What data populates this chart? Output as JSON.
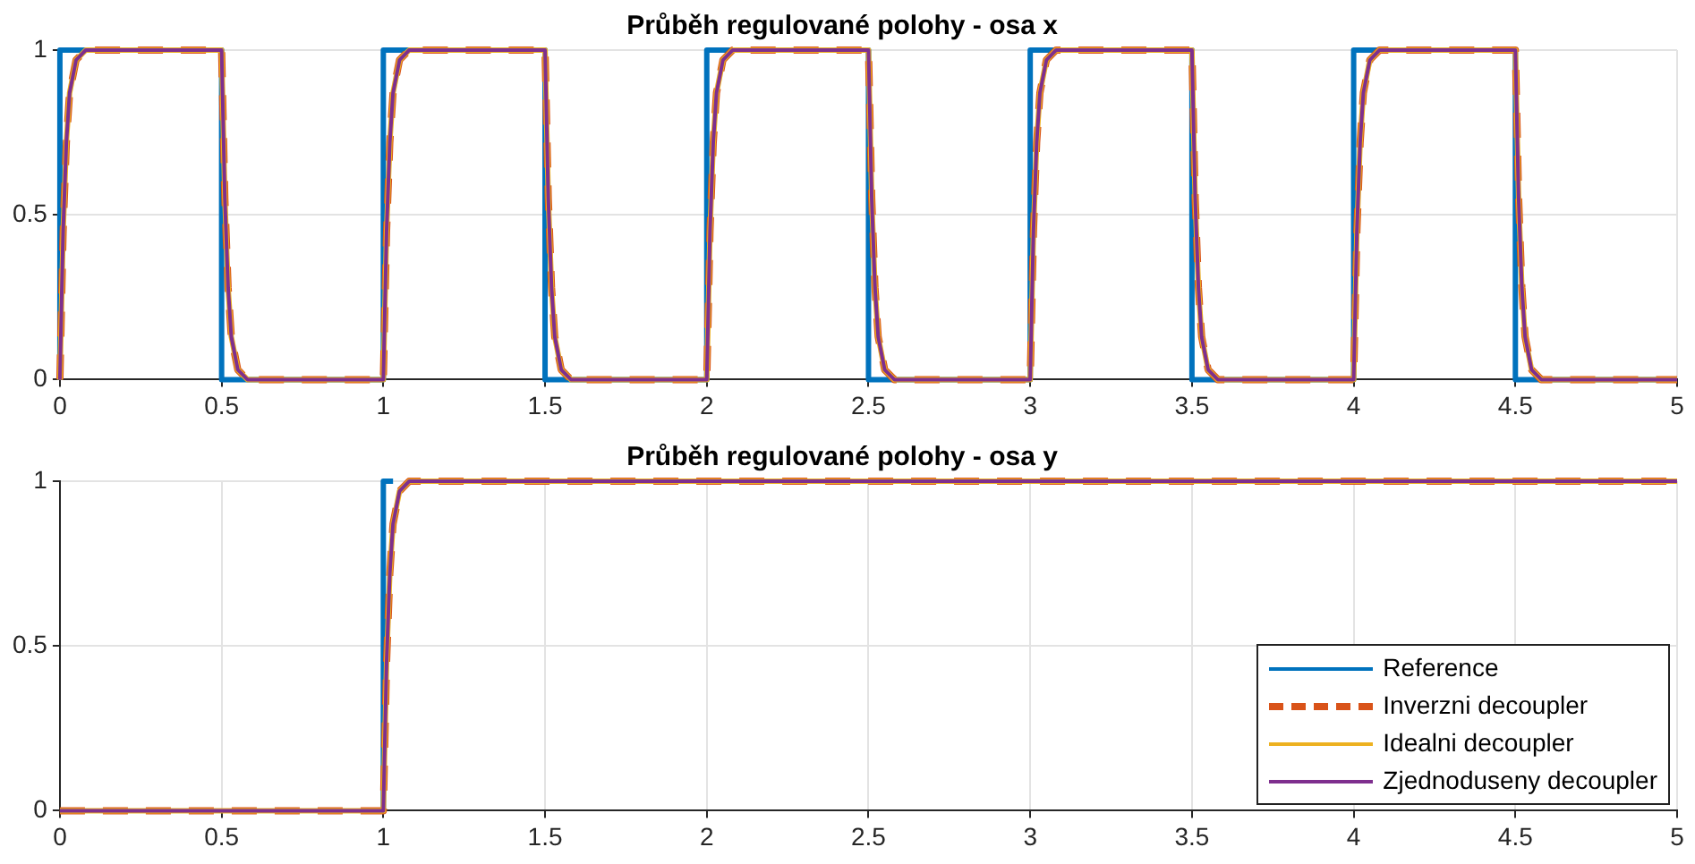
{
  "chart_data": [
    {
      "type": "line",
      "title": "Průběh regulované polohy - osa x",
      "xlim": [
        0,
        5
      ],
      "xticks": [
        0,
        0.5,
        1,
        1.5,
        2,
        2.5,
        3,
        3.5,
        4,
        4.5,
        5
      ],
      "ylim": [
        0,
        1
      ],
      "yticks": [
        0,
        0.5,
        1
      ],
      "grid": true,
      "legend": false,
      "marker": "none",
      "series": [
        {
          "color": "#0072bd",
          "x": [
            0,
            0,
            0.5,
            0.5,
            1,
            1,
            1.5,
            1.5,
            2,
            2,
            2.5,
            2.5,
            3,
            3,
            3.5,
            3.5,
            4,
            4,
            4.5,
            4.5,
            5
          ],
          "values": [
            0,
            1,
            1,
            0,
            0,
            1,
            1,
            0,
            0,
            1,
            1,
            0,
            0,
            1,
            1,
            0,
            0,
            1,
            1,
            0,
            0
          ]
        },
        {
          "color": "#d95319",
          "line_style": "dashed",
          "x": [
            0,
            0.01,
            0.02,
            0.03,
            0.05,
            0.08,
            0.5,
            0.51,
            0.52,
            0.53,
            0.55,
            0.58,
            1,
            1.01,
            1.02,
            1.03,
            1.05,
            1.08,
            1.5,
            1.51,
            1.52,
            1.53,
            1.55,
            1.58,
            2,
            2.01,
            2.02,
            2.03,
            2.05,
            2.08,
            2.5,
            2.51,
            2.52,
            2.53,
            2.55,
            2.58,
            3,
            3.01,
            3.02,
            3.03,
            3.05,
            3.08,
            3.5,
            3.51,
            3.52,
            3.53,
            3.55,
            3.58,
            4,
            4.01,
            4.02,
            4.03,
            4.05,
            4.08,
            4.5,
            4.51,
            4.52,
            4.53,
            4.55,
            4.58,
            5
          ],
          "values": [
            0,
            0.45,
            0.72,
            0.87,
            0.97,
            1,
            1,
            0.55,
            0.28,
            0.13,
            0.03,
            0,
            0,
            0.45,
            0.72,
            0.87,
            0.97,
            1,
            1,
            0.55,
            0.28,
            0.13,
            0.03,
            0,
            0,
            0.45,
            0.72,
            0.87,
            0.97,
            1,
            1,
            0.55,
            0.28,
            0.13,
            0.03,
            0,
            0,
            0.45,
            0.72,
            0.87,
            0.97,
            1,
            1,
            0.55,
            0.28,
            0.13,
            0.03,
            0,
            0,
            0.45,
            0.72,
            0.87,
            0.97,
            1,
            1,
            0.55,
            0.28,
            0.13,
            0.03,
            0,
            0
          ]
        },
        {
          "color": "#edb120",
          "x": [
            0,
            0.01,
            0.02,
            0.03,
            0.05,
            0.08,
            0.5,
            0.51,
            0.52,
            0.53,
            0.55,
            0.58,
            1,
            1.01,
            1.02,
            1.03,
            1.05,
            1.08,
            1.5,
            1.51,
            1.52,
            1.53,
            1.55,
            1.58,
            2,
            2.01,
            2.02,
            2.03,
            2.05,
            2.08,
            2.5,
            2.51,
            2.52,
            2.53,
            2.55,
            2.58,
            3,
            3.01,
            3.02,
            3.03,
            3.05,
            3.08,
            3.5,
            3.51,
            3.52,
            3.53,
            3.55,
            3.58,
            4,
            4.01,
            4.02,
            4.03,
            4.05,
            4.08,
            4.5,
            4.51,
            4.52,
            4.53,
            4.55,
            4.58,
            5
          ],
          "values": [
            0,
            0.45,
            0.72,
            0.87,
            0.97,
            1,
            1,
            0.55,
            0.28,
            0.13,
            0.03,
            0,
            0,
            0.45,
            0.72,
            0.87,
            0.97,
            1,
            1,
            0.55,
            0.28,
            0.13,
            0.03,
            0,
            0,
            0.45,
            0.72,
            0.87,
            0.97,
            1,
            1,
            0.55,
            0.28,
            0.13,
            0.03,
            0,
            0,
            0.45,
            0.72,
            0.87,
            0.97,
            1,
            1,
            0.55,
            0.28,
            0.13,
            0.03,
            0,
            0,
            0.45,
            0.72,
            0.87,
            0.97,
            1,
            1,
            0.55,
            0.28,
            0.13,
            0.03,
            0,
            0
          ]
        },
        {
          "color": "#7e2f8e",
          "x": [
            0,
            0.01,
            0.02,
            0.03,
            0.05,
            0.08,
            0.5,
            0.51,
            0.52,
            0.53,
            0.55,
            0.58,
            1,
            1.01,
            1.02,
            1.03,
            1.05,
            1.08,
            1.5,
            1.51,
            1.52,
            1.53,
            1.55,
            1.58,
            2,
            2.01,
            2.02,
            2.03,
            2.05,
            2.08,
            2.5,
            2.51,
            2.52,
            2.53,
            2.55,
            2.58,
            3,
            3.01,
            3.02,
            3.03,
            3.05,
            3.08,
            3.5,
            3.51,
            3.52,
            3.53,
            3.55,
            3.58,
            4,
            4.01,
            4.02,
            4.03,
            4.05,
            4.08,
            4.5,
            4.51,
            4.52,
            4.53,
            4.55,
            4.58,
            5
          ],
          "values": [
            0,
            0.45,
            0.72,
            0.87,
            0.97,
            1,
            1,
            0.55,
            0.28,
            0.13,
            0.03,
            0,
            0,
            0.45,
            0.72,
            0.87,
            0.97,
            1,
            1,
            0.55,
            0.28,
            0.13,
            0.03,
            0,
            0,
            0.45,
            0.72,
            0.87,
            0.97,
            1,
            1,
            0.55,
            0.28,
            0.13,
            0.03,
            0,
            0,
            0.45,
            0.72,
            0.87,
            0.97,
            1,
            1,
            0.55,
            0.28,
            0.13,
            0.03,
            0,
            0,
            0.45,
            0.72,
            0.87,
            0.97,
            1,
            1,
            0.55,
            0.28,
            0.13,
            0.03,
            0,
            0
          ]
        }
      ]
    },
    {
      "type": "line",
      "title": "Průběh regulované polohy - osa y",
      "xlim": [
        0,
        5
      ],
      "xticks": [
        0,
        0.5,
        1,
        1.5,
        2,
        2.5,
        3,
        3.5,
        4,
        4.5,
        5
      ],
      "ylim": [
        0,
        1
      ],
      "yticks": [
        0,
        0.5,
        1
      ],
      "grid": true,
      "legend": "bottom right",
      "marker": "none",
      "series": [
        {
          "name": "Reference",
          "color": "#0072bd",
          "x": [
            1,
            1,
            1.03
          ],
          "values": [
            0,
            1,
            1
          ]
        },
        {
          "name": "Inverzni decoupler",
          "color": "#d95319",
          "line_style": "dashed",
          "x": [
            0,
            1,
            1.01,
            1.02,
            1.03,
            1.05,
            1.08,
            5
          ],
          "values": [
            0,
            0,
            0.45,
            0.72,
            0.87,
            0.97,
            1,
            1
          ]
        },
        {
          "name": "Idealni decoupler",
          "color": "#edb120",
          "x": [
            0,
            1,
            1.01,
            1.02,
            1.03,
            1.05,
            1.08,
            5
          ],
          "values": [
            0,
            0,
            0.45,
            0.72,
            0.87,
            0.97,
            1,
            1
          ]
        },
        {
          "name": "Zjednoduseny decoupler",
          "color": "#7e2f8e",
          "x": [
            0,
            1,
            1.01,
            1.02,
            1.03,
            1.05,
            1.08,
            5
          ],
          "values": [
            0,
            0,
            0.45,
            0.72,
            0.87,
            0.97,
            1,
            1
          ]
        }
      ]
    }
  ]
}
